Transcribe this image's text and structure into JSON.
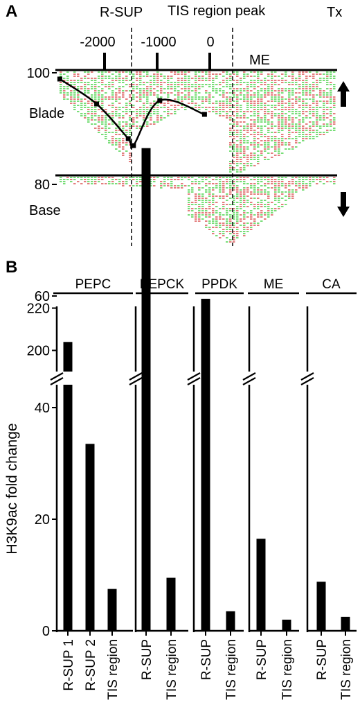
{
  "panel_a": {
    "letter": "A",
    "r_sup_label": "R-SUP",
    "tis_label": "TIS region peak",
    "tx_label": "Tx",
    "ticks": [
      "-2000",
      "-1000",
      "0"
    ],
    "me_label": "ME",
    "blade_label": "Blade",
    "base_label": "Base",
    "blade_arrow": "up",
    "base_arrow": "down",
    "read_colors": {
      "forward": "#d94848",
      "reverse": "#3fcf3f"
    },
    "blade_profile": [
      {
        "x": -2850,
        "y": 0.96
      },
      {
        "x": -2150,
        "y": 0.6
      },
      {
        "x": -1550,
        "y": 0.1
      },
      {
        "x": -1450,
        "y": 0.0
      },
      {
        "x": -950,
        "y": 0.65
      },
      {
        "x": -100,
        "y": 0.45
      }
    ]
  },
  "chart_data": {
    "type": "bar",
    "panel_letter": "B",
    "ylabel": "H3K9ac fold change",
    "y_ticks": [
      "0",
      "20",
      "40",
      "60",
      "80",
      "100",
      "200",
      "220"
    ],
    "axis_break": "100-195",
    "groups": [
      {
        "name": "PEPC",
        "categories": [
          "R-SUP 1",
          "R-SUP 2",
          "TIS region"
        ],
        "values": [
          204,
          33.5,
          7.5
        ]
      },
      {
        "name": "PEPCK",
        "categories": [
          "R-SUP",
          "TIS region"
        ],
        "values": [
          86.5,
          9.5
        ]
      },
      {
        "name": "PPDK",
        "categories": [
          "R-SUP",
          "TIS region"
        ],
        "values": [
          59.5,
          3.5
        ]
      },
      {
        "name": "ME",
        "categories": [
          "R-SUP",
          "TIS region"
        ],
        "values": [
          16.5,
          2
        ]
      },
      {
        "name": "CA",
        "categories": [
          "R-SUP",
          "TIS region"
        ],
        "values": [
          8.8,
          2.5
        ]
      }
    ]
  }
}
